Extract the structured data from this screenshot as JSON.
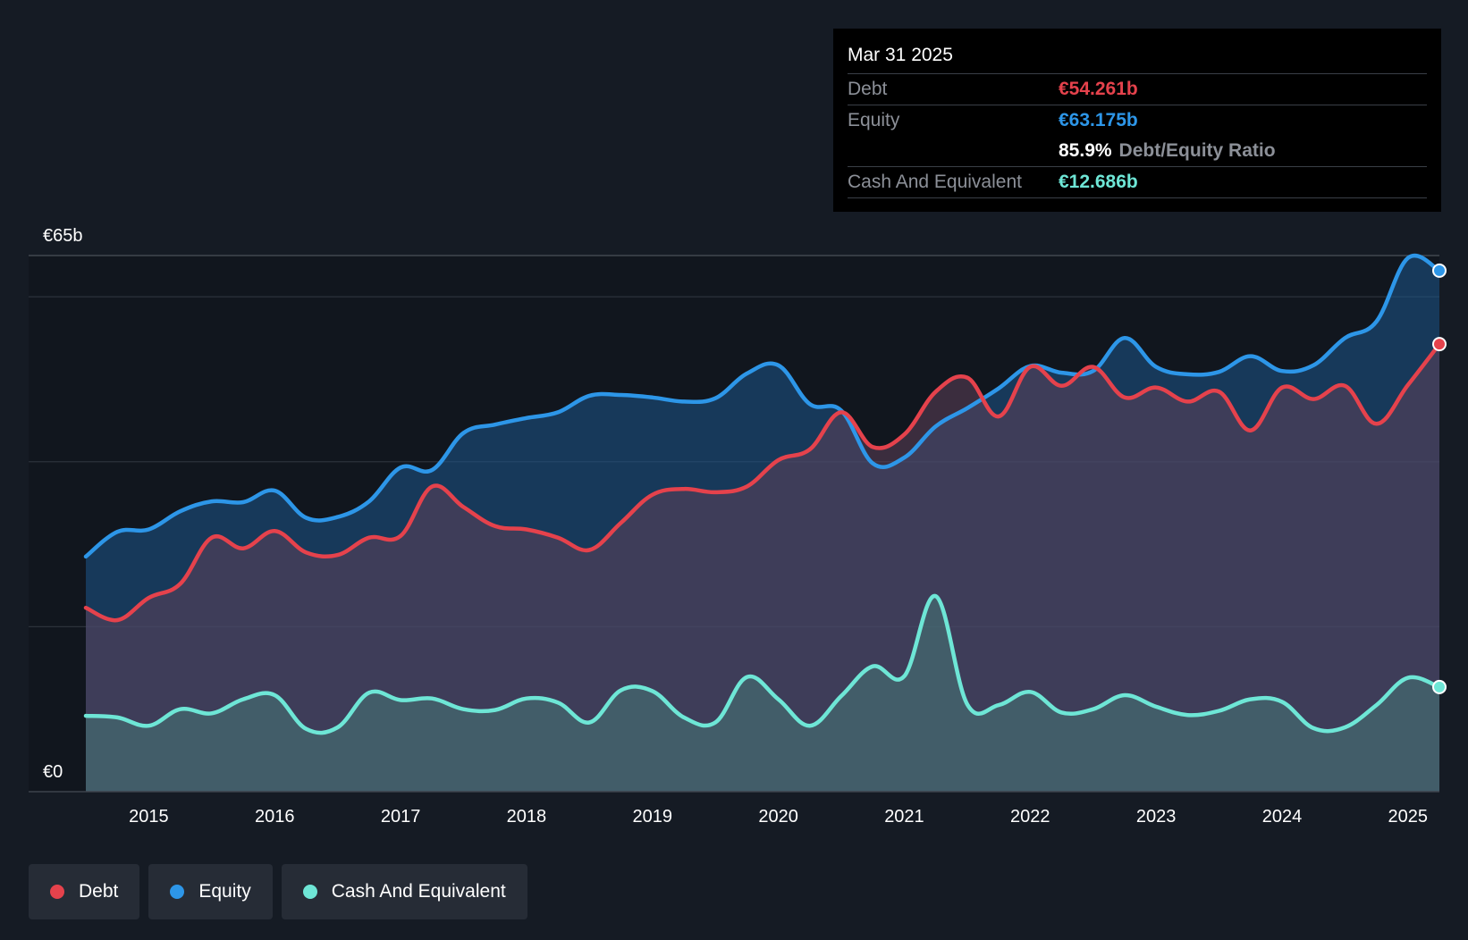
{
  "tooltip": {
    "date": "Mar 31 2025",
    "debt_label": "Debt",
    "debt_value": "€54.261b",
    "equity_label": "Equity",
    "equity_value": "€63.175b",
    "ratio_value": "85.9%",
    "ratio_label": "Debt/Equity Ratio",
    "cash_label": "Cash And Equivalent",
    "cash_value": "€12.686b"
  },
  "legend": {
    "debt": "Debt",
    "equity": "Equity",
    "cash": "Cash And Equivalent"
  },
  "colors": {
    "debt": "#e5424c",
    "equity": "#2d96e8",
    "cash": "#6ee6d6",
    "background": "#151b24"
  },
  "chart_data": {
    "type": "area",
    "title": "",
    "y_top_label": "€65b",
    "y_bottom_label": "€0",
    "ylim": [
      0,
      65
    ],
    "xlim": [
      2014.5,
      2025.25
    ],
    "x_ticks": [
      2015,
      2016,
      2017,
      2018,
      2019,
      2020,
      2021,
      2022,
      2023,
      2024,
      2025
    ],
    "x_tick_labels": [
      "2015",
      "2016",
      "2017",
      "2018",
      "2019",
      "2020",
      "2021",
      "2022",
      "2023",
      "2024",
      "2025"
    ],
    "series": [
      {
        "name": "Equity",
        "key": "equity",
        "points": [
          [
            2014.5,
            28.5
          ],
          [
            2014.75,
            31.5
          ],
          [
            2015,
            31.8
          ],
          [
            2015.25,
            34.0
          ],
          [
            2015.5,
            35.2
          ],
          [
            2015.75,
            35.1
          ],
          [
            2016,
            36.5
          ],
          [
            2016.25,
            33.2
          ],
          [
            2016.5,
            33.3
          ],
          [
            2016.75,
            35.2
          ],
          [
            2017,
            39.3
          ],
          [
            2017.25,
            39.0
          ],
          [
            2017.5,
            43.5
          ],
          [
            2017.75,
            44.5
          ],
          [
            2018,
            45.3
          ],
          [
            2018.25,
            46.0
          ],
          [
            2018.5,
            48.0
          ],
          [
            2018.75,
            48.1
          ],
          [
            2019,
            47.8
          ],
          [
            2019.25,
            47.3
          ],
          [
            2019.5,
            47.7
          ],
          [
            2019.75,
            50.7
          ],
          [
            2020,
            51.7
          ],
          [
            2020.25,
            47.0
          ],
          [
            2020.5,
            46.2
          ],
          [
            2020.75,
            39.8
          ],
          [
            2021,
            40.5
          ],
          [
            2021.25,
            44.3
          ],
          [
            2021.5,
            46.5
          ],
          [
            2021.75,
            48.9
          ],
          [
            2022,
            51.6
          ],
          [
            2022.25,
            50.8
          ],
          [
            2022.5,
            51.0
          ],
          [
            2022.75,
            55.0
          ],
          [
            2023,
            51.5
          ],
          [
            2023.25,
            50.6
          ],
          [
            2023.5,
            50.9
          ],
          [
            2023.75,
            52.8
          ],
          [
            2024,
            51.0
          ],
          [
            2024.25,
            51.7
          ],
          [
            2024.5,
            55.0
          ],
          [
            2024.75,
            57.0
          ],
          [
            2025,
            64.7
          ],
          [
            2025.25,
            63.175
          ]
        ]
      },
      {
        "name": "Debt",
        "key": "debt",
        "points": [
          [
            2014.5,
            22.3
          ],
          [
            2014.75,
            20.8
          ],
          [
            2015,
            23.5
          ],
          [
            2015.25,
            25.2
          ],
          [
            2015.5,
            30.8
          ],
          [
            2015.75,
            29.5
          ],
          [
            2016,
            31.6
          ],
          [
            2016.25,
            29.0
          ],
          [
            2016.5,
            28.7
          ],
          [
            2016.75,
            30.8
          ],
          [
            2017,
            31.0
          ],
          [
            2017.25,
            37.0
          ],
          [
            2017.5,
            34.5
          ],
          [
            2017.75,
            32.2
          ],
          [
            2018,
            31.8
          ],
          [
            2018.25,
            30.8
          ],
          [
            2018.5,
            29.3
          ],
          [
            2018.75,
            32.6
          ],
          [
            2019,
            36.0
          ],
          [
            2019.25,
            36.7
          ],
          [
            2019.5,
            36.3
          ],
          [
            2019.75,
            37.0
          ],
          [
            2020,
            40.2
          ],
          [
            2020.25,
            41.5
          ],
          [
            2020.5,
            46.0
          ],
          [
            2020.75,
            41.8
          ],
          [
            2021,
            43.3
          ],
          [
            2021.25,
            48.5
          ],
          [
            2021.5,
            50.2
          ],
          [
            2021.75,
            45.5
          ],
          [
            2022,
            51.5
          ],
          [
            2022.25,
            49.2
          ],
          [
            2022.5,
            51.5
          ],
          [
            2022.75,
            47.8
          ],
          [
            2023,
            49.0
          ],
          [
            2023.25,
            47.3
          ],
          [
            2023.5,
            48.5
          ],
          [
            2023.75,
            43.8
          ],
          [
            2024,
            49.0
          ],
          [
            2024.25,
            47.6
          ],
          [
            2024.5,
            49.2
          ],
          [
            2024.75,
            44.6
          ],
          [
            2025,
            49.3
          ],
          [
            2025.25,
            54.261
          ]
        ]
      },
      {
        "name": "Cash And Equivalent",
        "key": "cash",
        "points": [
          [
            2014.5,
            9.2
          ],
          [
            2014.75,
            9.0
          ],
          [
            2015,
            8.0
          ],
          [
            2015.25,
            10.0
          ],
          [
            2015.5,
            9.5
          ],
          [
            2015.75,
            11.2
          ],
          [
            2016,
            11.7
          ],
          [
            2016.25,
            7.6
          ],
          [
            2016.5,
            7.8
          ],
          [
            2016.75,
            12.0
          ],
          [
            2017,
            11.1
          ],
          [
            2017.25,
            11.3
          ],
          [
            2017.5,
            10.0
          ],
          [
            2017.75,
            9.9
          ],
          [
            2018,
            11.3
          ],
          [
            2018.25,
            10.8
          ],
          [
            2018.5,
            8.4
          ],
          [
            2018.75,
            12.3
          ],
          [
            2019,
            12.2
          ],
          [
            2019.25,
            9.0
          ],
          [
            2019.5,
            8.4
          ],
          [
            2019.75,
            13.9
          ],
          [
            2020,
            11.2
          ],
          [
            2020.25,
            8.0
          ],
          [
            2020.5,
            11.6
          ],
          [
            2020.75,
            15.2
          ],
          [
            2021,
            14.0
          ],
          [
            2021.25,
            23.7
          ],
          [
            2021.5,
            10.6
          ],
          [
            2021.75,
            10.5
          ],
          [
            2022,
            12.1
          ],
          [
            2022.25,
            9.6
          ],
          [
            2022.5,
            10.0
          ],
          [
            2022.75,
            11.7
          ],
          [
            2023,
            10.3
          ],
          [
            2023.25,
            9.3
          ],
          [
            2023.5,
            9.8
          ],
          [
            2023.75,
            11.2
          ],
          [
            2024,
            10.9
          ],
          [
            2024.25,
            7.7
          ],
          [
            2024.5,
            7.8
          ],
          [
            2024.75,
            10.5
          ],
          [
            2025,
            13.8
          ],
          [
            2025.25,
            12.686
          ]
        ]
      }
    ]
  }
}
